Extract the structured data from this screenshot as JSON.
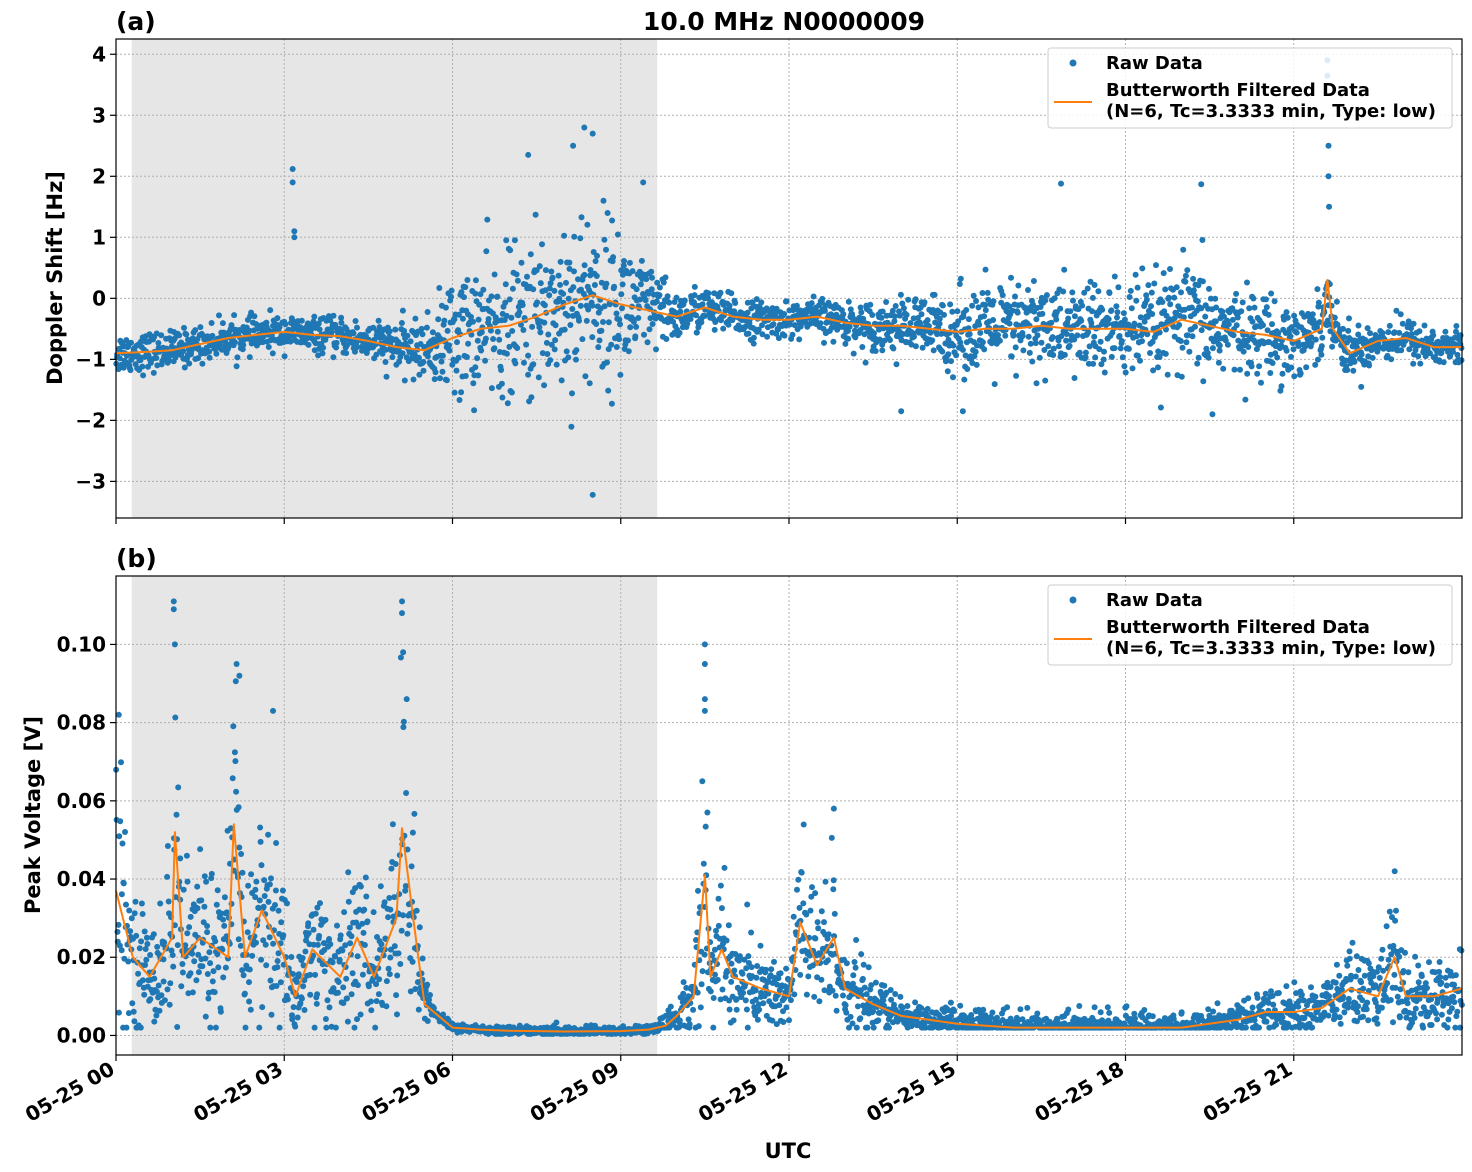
{
  "figure": {
    "title": "10.0 MHz N0000009",
    "xlabel": "UTC"
  },
  "chart_data": [
    {
      "panel": "(a)",
      "type": "scatter",
      "ylabel": "Doppler Shift [Hz]",
      "ylim": [
        -3.6,
        4.25
      ],
      "yticks": [
        -3,
        -2,
        -1,
        0,
        1,
        2,
        3,
        4
      ],
      "ytick_labels": [
        "−3",
        "−2",
        "−1",
        "0",
        "1",
        "2",
        "3",
        "4"
      ],
      "xlim_hours": [
        0,
        24
      ],
      "xtick_hours": [
        0,
        3,
        6,
        9,
        12,
        15,
        18,
        21
      ],
      "xtick_labels": [
        "05-25 00",
        "05-25 03",
        "05-25 06",
        "05-25 09",
        "05-25 12",
        "05-25 15",
        "05-25 18",
        "05-25 21"
      ],
      "shaded_span_hours": [
        0.28,
        9.65
      ],
      "grid": true,
      "legend_position": "top-right",
      "legend": [
        "Raw Data",
        "Butterworth Filtered Data",
        "(N=6, Tc=3.3333 min, Type: low)"
      ],
      "series": [
        {
          "name": "Butterworth Filtered Data",
          "kind": "line",
          "color": "#ff7f0e",
          "x": [
            0,
            0.5,
            1,
            1.5,
            2,
            2.5,
            3,
            3.5,
            4,
            4.5,
            5,
            5.5,
            6,
            6.5,
            7,
            7.5,
            8,
            8.5,
            9,
            9.5,
            10,
            10.5,
            11,
            11.5,
            12,
            12.5,
            13,
            13.5,
            14,
            14.5,
            15,
            15.5,
            16,
            16.5,
            17,
            17.5,
            18,
            18.5,
            19,
            19.5,
            20,
            20.5,
            21,
            21.5,
            21.6,
            21.7,
            22,
            22.5,
            23,
            23.5,
            24
          ],
          "y": [
            -0.9,
            -0.88,
            -0.85,
            -0.75,
            -0.65,
            -0.6,
            -0.55,
            -0.6,
            -0.62,
            -0.7,
            -0.8,
            -0.85,
            -0.65,
            -0.5,
            -0.45,
            -0.3,
            -0.1,
            0.05,
            -0.1,
            -0.2,
            -0.3,
            -0.15,
            -0.3,
            -0.35,
            -0.35,
            -0.3,
            -0.4,
            -0.45,
            -0.45,
            -0.5,
            -0.55,
            -0.5,
            -0.5,
            -0.45,
            -0.5,
            -0.5,
            -0.5,
            -0.55,
            -0.35,
            -0.45,
            -0.55,
            -0.6,
            -0.7,
            -0.5,
            0.3,
            -0.5,
            -0.9,
            -0.7,
            -0.65,
            -0.8,
            -0.8
          ]
        },
        {
          "name": "Raw Data",
          "kind": "scatter",
          "color": "#1f77b4",
          "spread_envelope_hours": [
            0,
            2,
            4,
            5.5,
            6,
            7,
            8,
            8.5,
            9,
            9.5,
            10,
            11,
            12,
            13,
            14,
            15,
            16,
            17,
            18,
            19,
            19.5,
            20,
            21,
            22,
            23,
            24
          ],
          "spread_envelope_hz": [
            0.3,
            0.25,
            0.25,
            0.4,
            0.9,
            1.1,
            1.3,
            1.3,
            1.1,
            0.7,
            0.35,
            0.3,
            0.25,
            0.3,
            0.4,
            0.6,
            0.7,
            0.7,
            0.75,
            0.8,
            0.8,
            0.6,
            0.6,
            0.35,
            0.3,
            0.3
          ],
          "outliers": [
            {
              "x": 3.15,
              "y": 2.12
            },
            {
              "x": 3.15,
              "y": 1.9
            },
            {
              "x": 3.18,
              "y": 1.1
            },
            {
              "x": 3.18,
              "y": 1.0
            },
            {
              "x": 8.5,
              "y": -3.22
            },
            {
              "x": 8.35,
              "y": 2.8
            },
            {
              "x": 8.5,
              "y": 2.7
            },
            {
              "x": 7.35,
              "y": 2.35
            },
            {
              "x": 8.15,
              "y": 2.5
            },
            {
              "x": 9.4,
              "y": 1.9
            },
            {
              "x": 16.85,
              "y": 1.88
            },
            {
              "x": 19.35,
              "y": 1.87
            },
            {
              "x": 21.6,
              "y": 3.9
            },
            {
              "x": 21.6,
              "y": 3.65
            },
            {
              "x": 21.62,
              "y": 2.5
            },
            {
              "x": 21.62,
              "y": 2.0
            },
            {
              "x": 21.63,
              "y": 1.5
            },
            {
              "x": 14.0,
              "y": -1.85
            },
            {
              "x": 15.1,
              "y": -1.85
            },
            {
              "x": 19.55,
              "y": -1.9
            }
          ]
        }
      ]
    },
    {
      "panel": "(b)",
      "type": "scatter",
      "ylabel": "Peak Voltage [V]",
      "ylim": [
        -0.005,
        0.1175
      ],
      "yticks": [
        0.0,
        0.02,
        0.04,
        0.06,
        0.08,
        0.1
      ],
      "ytick_labels": [
        "0.00",
        "0.02",
        "0.04",
        "0.06",
        "0.08",
        "0.10"
      ],
      "xlim_hours": [
        0,
        24
      ],
      "xtick_hours": [
        0,
        3,
        6,
        9,
        12,
        15,
        18,
        21
      ],
      "xtick_labels": [
        "05-25 00",
        "05-25 03",
        "05-25 06",
        "05-25 09",
        "05-25 12",
        "05-25 15",
        "05-25 18",
        "05-25 21"
      ],
      "shaded_span_hours": [
        0.28,
        9.65
      ],
      "grid": true,
      "legend_position": "top-right",
      "legend": [
        "Raw Data",
        "Butterworth Filtered Data",
        "(N=6, Tc=3.3333 min, Type: low)"
      ],
      "series": [
        {
          "name": "Butterworth Filtered Data",
          "kind": "line",
          "color": "#ff7f0e",
          "x": [
            0,
            0.3,
            0.6,
            1,
            1.05,
            1.2,
            1.5,
            2,
            2.1,
            2.3,
            2.6,
            3,
            3.2,
            3.5,
            4,
            4.3,
            4.6,
            5,
            5.1,
            5.3,
            5.5,
            6,
            6.5,
            7,
            8,
            9,
            9.5,
            9.8,
            10,
            10.3,
            10.5,
            10.6,
            10.8,
            11,
            11.5,
            12,
            12.2,
            12.5,
            12.8,
            13,
            13.5,
            14,
            15,
            16,
            17,
            18,
            19,
            20,
            20.5,
            21,
            21.5,
            22,
            22.5,
            22.8,
            23,
            23.5,
            24
          ],
          "y": [
            0.037,
            0.02,
            0.015,
            0.025,
            0.052,
            0.02,
            0.025,
            0.02,
            0.054,
            0.02,
            0.032,
            0.02,
            0.01,
            0.022,
            0.015,
            0.025,
            0.015,
            0.03,
            0.053,
            0.03,
            0.008,
            0.002,
            0.0015,
            0.0012,
            0.001,
            0.0011,
            0.0015,
            0.0025,
            0.005,
            0.01,
            0.041,
            0.015,
            0.022,
            0.015,
            0.012,
            0.01,
            0.029,
            0.018,
            0.025,
            0.012,
            0.008,
            0.005,
            0.003,
            0.002,
            0.002,
            0.002,
            0.002,
            0.004,
            0.006,
            0.006,
            0.007,
            0.012,
            0.01,
            0.02,
            0.01,
            0.01,
            0.012
          ]
        },
        {
          "name": "Raw Data",
          "kind": "scatter",
          "color": "#1f77b4",
          "outliers": [
            {
              "x": 0.05,
              "y": 0.082
            },
            {
              "x": 1.03,
              "y": 0.111
            },
            {
              "x": 1.03,
              "y": 0.109
            },
            {
              "x": 1.05,
              "y": 0.1
            },
            {
              "x": 2.15,
              "y": 0.095
            },
            {
              "x": 2.2,
              "y": 0.092
            },
            {
              "x": 2.8,
              "y": 0.083
            },
            {
              "x": 5.1,
              "y": 0.111
            },
            {
              "x": 5.1,
              "y": 0.108
            },
            {
              "x": 5.12,
              "y": 0.098
            },
            {
              "x": 10.5,
              "y": 0.1
            },
            {
              "x": 10.5,
              "y": 0.095
            },
            {
              "x": 10.5,
              "y": 0.086
            },
            {
              "x": 10.5,
              "y": 0.083
            },
            {
              "x": 12.8,
              "y": 0.058
            },
            {
              "x": 22.8,
              "y": 0.042
            }
          ]
        }
      ]
    }
  ],
  "colors": {
    "raw": "#1f77b4",
    "filtered": "#ff7f0e",
    "shade": "#e6e6e6",
    "grid": "#b0b0b0"
  }
}
